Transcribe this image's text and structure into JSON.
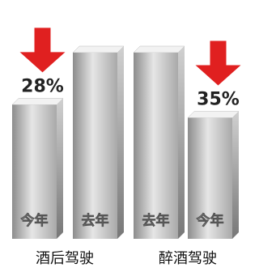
{
  "chart_data": {
    "type": "bar",
    "categories": [
      "酒后驾驶",
      "醉酒驾驶"
    ],
    "series": [
      {
        "name": "今年",
        "values": [
          72,
          65
        ]
      },
      {
        "name": "去年",
        "values": [
          100,
          100
        ]
      }
    ],
    "decrease": {
      "values": [
        28,
        35
      ],
      "value_labels": [
        "28%",
        "35%"
      ],
      "color": "#e02020"
    }
  }
}
